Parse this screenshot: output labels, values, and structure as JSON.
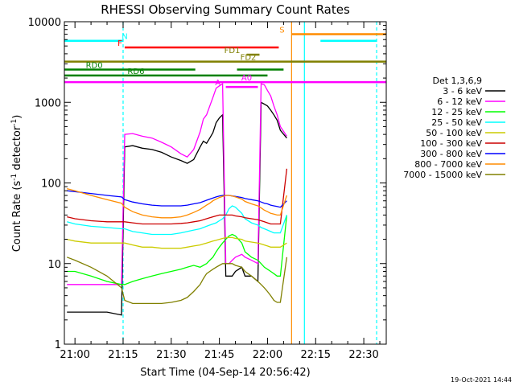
{
  "chart_data": {
    "type": "line",
    "title": "RHESSI Observing Summary Count Rates",
    "xlabel": "Start Time (04-Sep-14 20:56:42)",
    "ylabel_parts": [
      "Count Rate (s",
      "-1",
      " detector",
      "-1",
      ")"
    ],
    "y_log": true,
    "ylim": [
      1,
      10000
    ],
    "xlim_minutes": [
      56.7,
      157
    ],
    "x_ticks": [
      {
        "label": "21:00",
        "min": 60
      },
      {
        "label": "21:15",
        "min": 75
      },
      {
        "label": "21:30",
        "min": 90
      },
      {
        "label": "21:45",
        "min": 105
      },
      {
        "label": "22:00",
        "min": 120
      },
      {
        "label": "22:15",
        "min": 135
      },
      {
        "label": "22:30",
        "min": 150
      }
    ],
    "y_ticks": [
      {
        "label": "1",
        "v": 1
      },
      {
        "label": "10",
        "v": 10
      },
      {
        "label": "100",
        "v": 100
      },
      {
        "label": "1000",
        "v": 1000
      },
      {
        "label": "10000",
        "v": 10000
      }
    ],
    "legend_title": "Det 1,3,6,9",
    "legend_position": "right",
    "series": [
      {
        "name": "3 - 6 keV",
        "color": "#000000",
        "x": [
          57.5,
          60,
          65,
          70,
          74.5,
          75.5,
          78,
          81,
          84,
          87,
          90,
          93,
          95,
          97,
          99,
          100,
          101,
          102,
          103,
          104,
          105,
          106,
          107,
          108,
          109,
          110,
          112,
          113,
          115,
          117,
          118,
          119,
          120,
          121,
          122,
          123,
          124,
          126
        ],
        "values": [
          2.5,
          2.5,
          2.5,
          2.5,
          2.3,
          280,
          290,
          270,
          260,
          240,
          210,
          190,
          175,
          195,
          280,
          330,
          310,
          360,
          420,
          560,
          640,
          700,
          7,
          7,
          7,
          8,
          9,
          7,
          7,
          6,
          1000,
          950,
          900,
          800,
          700,
          600,
          450,
          360
        ]
      },
      {
        "name": "6 - 12 keV",
        "color": "#ff00ff",
        "x": [
          57.5,
          60,
          65,
          70,
          74.5,
          75.5,
          78,
          81,
          84,
          87,
          90,
          93,
          95,
          97,
          99,
          100,
          101,
          102,
          103,
          104,
          105,
          106,
          107,
          108,
          109,
          110,
          112,
          113,
          115,
          117,
          118,
          119,
          120,
          121,
          122,
          123,
          124,
          126
        ],
        "values": [
          5.5,
          5.5,
          5.5,
          5.5,
          5.5,
          400,
          410,
          380,
          360,
          320,
          280,
          230,
          210,
          260,
          430,
          620,
          700,
          900,
          1150,
          1500,
          1600,
          1700,
          10,
          10,
          11,
          12,
          13,
          12,
          11,
          10,
          1700,
          1650,
          1400,
          1200,
          900,
          700,
          500,
          380
        ]
      },
      {
        "name": "12 - 25 keV",
        "color": "#00ff00",
        "x": [
          57.5,
          60,
          65,
          70,
          74.5,
          75.5,
          78,
          81,
          84,
          87,
          90,
          93,
          95,
          97,
          99,
          100,
          101,
          102,
          103,
          104,
          105,
          106,
          107,
          108,
          109,
          110,
          112,
          113,
          115,
          117,
          118,
          119,
          120,
          121,
          122,
          123,
          124,
          126
        ],
        "values": [
          8,
          8,
          7,
          6,
          5.5,
          5.5,
          6,
          6.5,
          7,
          7.5,
          8,
          8.5,
          9,
          9.5,
          9,
          9.5,
          10,
          11,
          12,
          14,
          16,
          18,
          20,
          22,
          23,
          22,
          18,
          14,
          12,
          11,
          10,
          9,
          8.5,
          8,
          7.5,
          7,
          7,
          40
        ]
      },
      {
        "name": "25 - 50 keV",
        "color": "#00ffff",
        "x": [
          57.5,
          60,
          65,
          70,
          74.5,
          75.5,
          78,
          81,
          84,
          87,
          90,
          93,
          95,
          97,
          99,
          100,
          101,
          102,
          103,
          104,
          105,
          106,
          107,
          108,
          109,
          110,
          112,
          113,
          115,
          117,
          118,
          119,
          120,
          121,
          122,
          123,
          124,
          126
        ],
        "values": [
          33,
          31,
          29,
          28,
          27,
          27,
          25,
          24,
          23,
          23,
          23,
          24,
          25,
          26,
          27,
          28,
          29,
          30,
          31,
          32,
          34,
          36,
          40,
          48,
          52,
          50,
          42,
          36,
          32,
          30,
          28,
          27,
          26,
          25,
          24,
          24,
          24,
          40
        ]
      },
      {
        "name": "50 - 100 keV",
        "color": "#cccc00",
        "x": [
          57.5,
          60,
          65,
          70,
          74.5,
          75.5,
          78,
          81,
          84,
          87,
          90,
          93,
          95,
          97,
          99,
          100,
          101,
          102,
          103,
          104,
          105,
          106,
          107,
          108,
          109,
          110,
          112,
          113,
          115,
          117,
          118,
          119,
          120,
          121,
          122,
          123,
          124,
          126
        ],
        "values": [
          20,
          19,
          18,
          18,
          18,
          18,
          17,
          16,
          16,
          15.5,
          15.5,
          15.5,
          16,
          16.5,
          17,
          17.5,
          18,
          18.5,
          19,
          19.5,
          20,
          20.5,
          21,
          21,
          21,
          20.5,
          20,
          19,
          18.5,
          18,
          17.5,
          17,
          16.5,
          16,
          16,
          16,
          16,
          18
        ]
      },
      {
        "name": "100 - 300 keV",
        "color": "#cc0000",
        "x": [
          57.5,
          60,
          65,
          70,
          74.5,
          75.5,
          78,
          81,
          84,
          87,
          90,
          93,
          95,
          97,
          99,
          100,
          101,
          102,
          103,
          104,
          105,
          106,
          107,
          108,
          109,
          110,
          112,
          113,
          115,
          117,
          118,
          119,
          120,
          121,
          122,
          123,
          124,
          126
        ],
        "values": [
          38,
          36,
          34,
          33,
          33,
          33,
          32,
          31,
          31,
          31,
          31,
          31.5,
          32,
          33,
          34,
          35,
          36,
          37,
          38,
          39,
          40,
          40,
          40,
          40,
          40,
          39,
          38,
          37,
          36,
          35,
          34,
          33,
          32,
          31,
          31,
          31,
          31,
          150
        ]
      },
      {
        "name": "300 - 800 keV",
        "color": "#0000ff",
        "x": [
          57.5,
          60,
          65,
          70,
          74.5,
          75.5,
          78,
          81,
          84,
          87,
          90,
          93,
          95,
          97,
          99,
          100,
          101,
          102,
          103,
          104,
          105,
          106,
          107,
          108,
          109,
          110,
          112,
          113,
          115,
          117,
          118,
          119,
          120,
          121,
          122,
          123,
          124,
          126
        ],
        "values": [
          80,
          78,
          74,
          70,
          67,
          62,
          58,
          55,
          53,
          52,
          52,
          52,
          53,
          55,
          57,
          59,
          61,
          63,
          65,
          67,
          69,
          70,
          70,
          70,
          69,
          68,
          66,
          64,
          62,
          60,
          58,
          56,
          55,
          53,
          52,
          51,
          50,
          60
        ]
      },
      {
        "name": "800 - 7000 keV",
        "color": "#ff8c00",
        "x": [
          57.5,
          60,
          65,
          70,
          74.5,
          75.5,
          78,
          81,
          84,
          87,
          90,
          93,
          95,
          97,
          99,
          100,
          101,
          102,
          103,
          104,
          105,
          106,
          107,
          108,
          109,
          110,
          112,
          113,
          115,
          117,
          118,
          119,
          120,
          121,
          122,
          123,
          124,
          126
        ],
        "values": [
          85,
          80,
          70,
          62,
          56,
          50,
          44,
          40,
          38,
          37,
          37,
          38,
          40,
          43,
          47,
          50,
          53,
          56,
          60,
          63,
          66,
          68,
          70,
          70,
          69,
          67,
          63,
          59,
          55,
          52,
          49,
          46,
          44,
          42,
          41,
          40,
          40,
          70
        ]
      },
      {
        "name": "7000 - 15000 keV",
        "color": "#808000",
        "x": [
          57.5,
          60,
          65,
          70,
          74.5,
          75.5,
          78,
          81,
          84,
          87,
          90,
          93,
          95,
          97,
          99,
          100,
          101,
          102,
          103,
          104,
          105,
          106,
          107,
          108,
          109,
          110,
          112,
          113,
          115,
          117,
          118,
          119,
          120,
          121,
          122,
          123,
          124,
          126
        ],
        "values": [
          12,
          11,
          9,
          7,
          5,
          3.5,
          3.2,
          3.2,
          3.2,
          3.2,
          3.3,
          3.5,
          3.8,
          4.5,
          5.5,
          6.5,
          7.5,
          8,
          8.5,
          9,
          9.5,
          10,
          10,
          10,
          10,
          9.5,
          9,
          8,
          7,
          6,
          5.5,
          5,
          4.5,
          4,
          3.5,
          3.3,
          3.3,
          12
        ]
      }
    ],
    "flag_bars": [
      {
        "label": "N",
        "color": "#00ffff",
        "v": 5800,
        "segments": [
          [
            56.7,
            75
          ],
          [
            136.5,
            154
          ]
        ],
        "label_min": 75.5,
        "label_v": 5800
      },
      {
        "label": "F",
        "color": "#ff0000",
        "v": 4800,
        "segments": [
          [
            75.5,
            123.5
          ]
        ],
        "label_min": 74,
        "label_v": 4800
      },
      {
        "label": "S",
        "color": "#ff8c00",
        "v": 7000,
        "segments": [
          [
            127.5,
            157
          ]
        ],
        "label_min": 124.5,
        "label_v": 7000
      },
      {
        "label": "FD1",
        "color": "#808000",
        "v": 3900,
        "segments": [
          [
            113.5,
            117.5
          ]
        ],
        "label_min": 109,
        "label_v": 3900
      },
      {
        "label": "FD2",
        "color": "#808000",
        "v": 3200,
        "segments": [
          [
            56.7,
            157
          ]
        ],
        "label_min": 114,
        "label_v": 3200
      },
      {
        "label": "RD0",
        "color": "#008000",
        "v": 2550,
        "segments": [
          [
            56.7,
            97.5
          ],
          [
            110.5,
            125
          ]
        ],
        "label_min": 66,
        "label_v": 2550
      },
      {
        "label": "RD6",
        "color": "#008000",
        "v": 2150,
        "segments": [
          [
            56.7,
            120
          ]
        ],
        "label_min": 79,
        "label_v": 2150
      },
      {
        "label": "A0",
        "color": "#ff00ff",
        "v": 1780,
        "segments": [
          [
            56.7,
            157
          ]
        ],
        "label_min": 113.5,
        "label_v": 1780
      },
      {
        "label": "A",
        "color": "#ff00ff",
        "v": 1550,
        "segments": [
          [
            107,
            117
          ]
        ],
        "label_min": 104.5,
        "label_v": 1550
      }
    ],
    "vertical_markers": [
      {
        "min": 75,
        "color": "#00ffff",
        "dashed": true
      },
      {
        "min": 127.5,
        "color": "#ff8c00",
        "dashed": false
      },
      {
        "min": 131.5,
        "color": "#00ffff",
        "dashed": false
      },
      {
        "min": 154,
        "color": "#00ffff",
        "dashed": true
      }
    ],
    "timestamp": "19-Oct-2021 14:44"
  }
}
